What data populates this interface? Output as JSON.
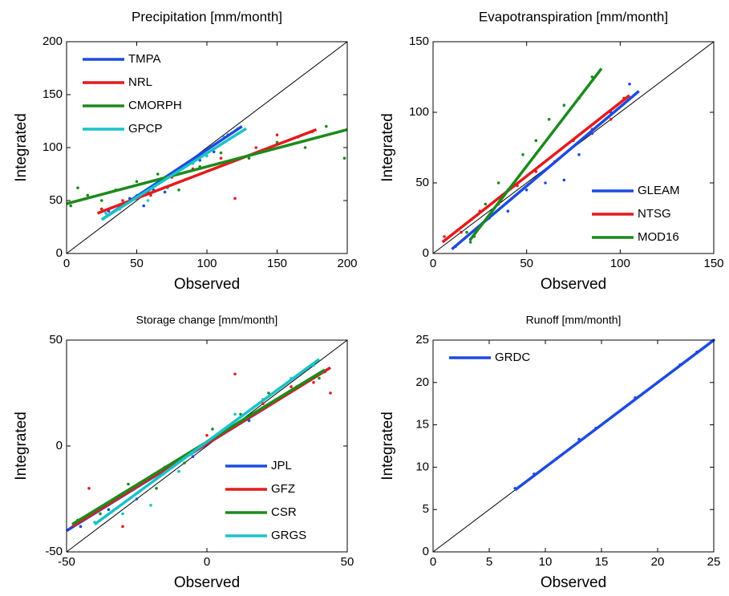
{
  "chart_data": [
    {
      "type": "scatter",
      "title": "Precipitation [mm/month]",
      "xlabel": "Observed",
      "ylabel": "Integrated",
      "xlim": [
        0,
        200
      ],
      "ylim": [
        0,
        200
      ],
      "xticks": [
        0,
        50,
        100,
        150,
        200
      ],
      "yticks": [
        0,
        50,
        100,
        150,
        200
      ],
      "legend": "upper left",
      "series": [
        {
          "name": "TMPA",
          "color": "#1d4be0",
          "fit_x": [
            25,
            125
          ],
          "fit_values": [
            32,
            120
          ],
          "x": [
            30,
            45,
            55,
            62,
            70,
            78,
            85,
            95,
            105,
            115
          ],
          "values": [
            40,
            52,
            45,
            60,
            58,
            75,
            70,
            88,
            96,
            112
          ]
        },
        {
          "name": "NRL",
          "color": "#e41a1c",
          "fit_x": [
            22,
            178
          ],
          "fit_values": [
            38,
            117
          ],
          "x": [
            25,
            40,
            60,
            75,
            90,
            110,
            120,
            135,
            150,
            165,
            175
          ],
          "values": [
            42,
            50,
            55,
            72,
            80,
            90,
            52,
            100,
            112,
            110,
            115
          ]
        },
        {
          "name": "CMORPH",
          "color": "#1c8a1c",
          "fit_x": [
            0,
            200
          ],
          "fit_values": [
            47,
            117
          ],
          "x": [
            3,
            8,
            15,
            25,
            35,
            50,
            65,
            80,
            95,
            110,
            130,
            150,
            170,
            185,
            198
          ],
          "values": [
            45,
            62,
            55,
            50,
            60,
            68,
            75,
            60,
            82,
            95,
            90,
            105,
            100,
            120,
            90
          ]
        },
        {
          "name": "GPCP",
          "color": "#19c2c8",
          "fit_x": [
            25,
            128
          ],
          "fit_values": [
            32,
            118
          ],
          "x": [
            28,
            38,
            50,
            58,
            65,
            72,
            80,
            90,
            100,
            112,
            122
          ],
          "values": [
            38,
            42,
            55,
            50,
            68,
            62,
            78,
            85,
            92,
            110,
            118
          ]
        }
      ]
    },
    {
      "type": "scatter",
      "title": "Evapotranspiration [mm/month]",
      "xlabel": "Observed",
      "ylabel": "Integrated",
      "xlim": [
        0,
        150
      ],
      "ylim": [
        0,
        150
      ],
      "xticks": [
        0,
        50,
        100,
        150
      ],
      "yticks": [
        0,
        50,
        100,
        150
      ],
      "legend": "lower right",
      "series": [
        {
          "name": "GLEAM",
          "color": "#1d4be0",
          "fit_x": [
            10,
            110
          ],
          "fit_values": [
            3,
            115
          ],
          "x": [
            12,
            20,
            30,
            40,
            50,
            60,
            70,
            78,
            85,
            95,
            105
          ],
          "values": [
            5,
            10,
            25,
            30,
            45,
            50,
            52,
            70,
            85,
            100,
            120
          ]
        },
        {
          "name": "NTSG",
          "color": "#e41a1c",
          "fit_x": [
            5,
            105
          ],
          "fit_values": [
            8,
            112
          ],
          "x": [
            6,
            15,
            25,
            35,
            45,
            55,
            65,
            75,
            85,
            95,
            102
          ],
          "values": [
            12,
            15,
            30,
            35,
            48,
            58,
            65,
            80,
            88,
            95,
            110
          ]
        },
        {
          "name": "MOD16",
          "color": "#1c8a1c",
          "fit_x": [
            20,
            90
          ],
          "fit_values": [
            10,
            131
          ],
          "x": [
            18,
            20,
            22,
            28,
            35,
            40,
            48,
            55,
            62,
            70,
            78,
            85
          ],
          "values": [
            15,
            8,
            12,
            35,
            50,
            45,
            70,
            80,
            95,
            105,
            110,
            125
          ]
        }
      ]
    },
    {
      "type": "scatter",
      "title": "Storage change [mm/month]",
      "xlabel": "Observed",
      "ylabel": "Integrated",
      "xlim": [
        -50,
        50
      ],
      "ylim": [
        -50,
        50
      ],
      "xticks": [
        -50,
        0,
        50
      ],
      "yticks": [
        -50,
        0,
        50
      ],
      "legend": "lower right",
      "series": [
        {
          "name": "JPL",
          "color": "#1d4be0",
          "fit_x": [
            -50,
            44
          ],
          "fit_values": [
            -40,
            37
          ],
          "x": [
            -45,
            -35,
            -25,
            -15,
            -5,
            5,
            15,
            25,
            35,
            42
          ],
          "values": [
            -38,
            -30,
            -25,
            -10,
            -5,
            5,
            12,
            22,
            30,
            35
          ]
        },
        {
          "name": "GFZ",
          "color": "#e41a1c",
          "fit_x": [
            -48,
            44
          ],
          "fit_values": [
            -38,
            37
          ],
          "x": [
            -42,
            -30,
            -20,
            -10,
            0,
            10,
            20,
            30,
            38,
            44
          ],
          "values": [
            -20,
            -38,
            -15,
            -12,
            5,
            34,
            20,
            28,
            30,
            25
          ]
        },
        {
          "name": "CSR",
          "color": "#1c8a1c",
          "fit_x": [
            -48,
            42
          ],
          "fit_values": [
            -37,
            36
          ],
          "x": [
            -46,
            -38,
            -28,
            -18,
            -8,
            2,
            12,
            22,
            32,
            40
          ],
          "values": [
            -35,
            -32,
            -18,
            -20,
            -8,
            8,
            15,
            25,
            28,
            32
          ]
        },
        {
          "name": "GRGS",
          "color": "#19c2c8",
          "fit_x": [
            -40,
            40
          ],
          "fit_values": [
            -37,
            41
          ],
          "x": [
            -40,
            -30,
            -20,
            -10,
            0,
            10,
            20,
            30,
            38
          ],
          "values": [
            -36,
            -32,
            -28,
            -12,
            2,
            15,
            22,
            32,
            38
          ]
        }
      ]
    },
    {
      "type": "scatter",
      "title": "Runoff [mm/month]",
      "xlabel": "Observed",
      "ylabel": "Integrated",
      "xlim": [
        0,
        25
      ],
      "ylim": [
        0,
        25
      ],
      "xticks": [
        0,
        5,
        10,
        15,
        20,
        25
      ],
      "yticks": [
        0,
        5,
        10,
        15,
        20,
        25
      ],
      "legend": "upper left",
      "series": [
        {
          "name": "GRDC",
          "color": "#1d4be0",
          "fit_x": [
            7.3,
            25
          ],
          "fit_values": [
            7.3,
            25
          ],
          "x": [
            7.3,
            9,
            11,
            13,
            14.5,
            16,
            18,
            20,
            22,
            23.5,
            25
          ],
          "values": [
            7.5,
            9.2,
            11,
            13.3,
            14.6,
            16,
            18.2,
            20,
            22.1,
            23.6,
            25
          ]
        }
      ]
    }
  ]
}
